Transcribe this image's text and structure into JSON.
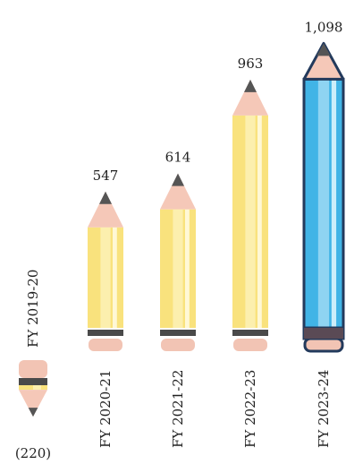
{
  "chart_data": {
    "type": "bar",
    "style": "pencil-pictogram",
    "categories": [
      "FY 2019-20",
      "FY 2020-21",
      "FY 2021-22",
      "FY 2022-23",
      "FY 2023-24"
    ],
    "values": [
      -220,
      547,
      614,
      963,
      1098
    ],
    "value_labels": [
      "(220)",
      "547",
      "614",
      "963",
      "1,098"
    ],
    "highlight_index": 4,
    "grid": false,
    "title": "",
    "xlabel": "",
    "ylabel": ""
  },
  "colors": {
    "pencil_body": "#f9e27d",
    "pencil_body_light": "#fcefae",
    "pencil_body_stripe": "#fff8d6",
    "pencil_wood": "#f5c8b8",
    "pencil_lead": "#555555",
    "pencil_band": "#4a4a4a",
    "pencil_eraser": "#f2c4b4",
    "highlight_body": "#41b4e6",
    "highlight_body_light": "#8fd4f2",
    "highlight_body_stripe": "#cdeefa",
    "highlight_outline": "#233a5c",
    "highlight_band": "#5a4a55",
    "text": "#222222"
  }
}
